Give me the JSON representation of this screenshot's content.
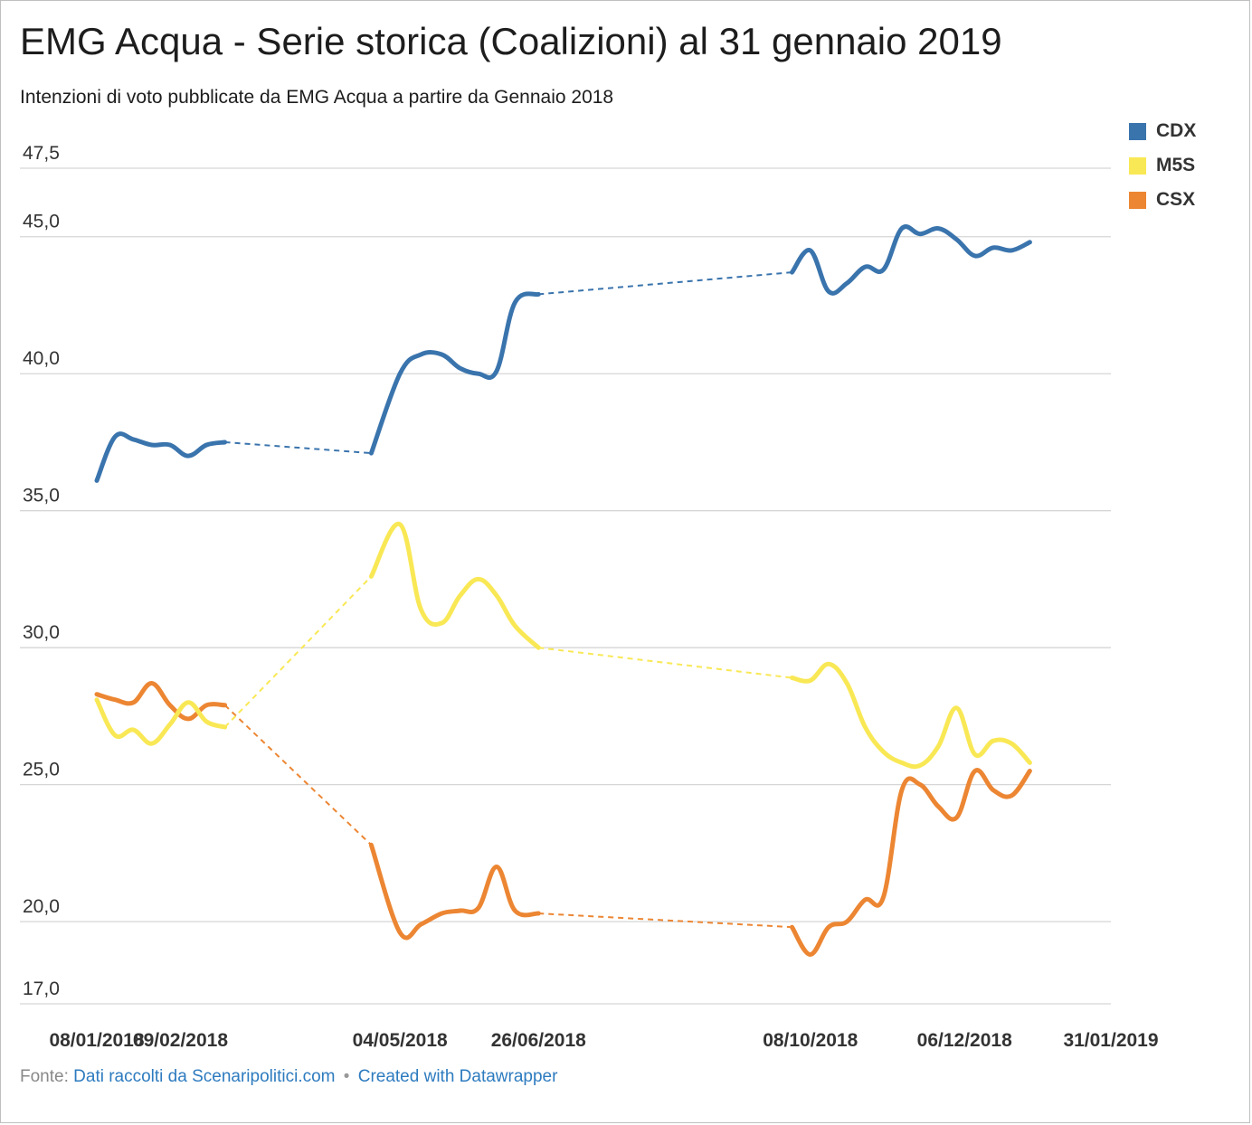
{
  "title": "EMG Acqua - Serie storica (Coalizioni) al 31 gennaio 2019",
  "subtitle": "Intenzioni di voto pubblicate da EMG Acqua a partire da Gennaio 2018",
  "footer": {
    "prefix": "Fonte:",
    "source_link": "Dati raccolti da Scenaripolitici.com",
    "separator": "•",
    "credit_link": "Created with Datawrapper"
  },
  "colors": {
    "CDX": "#3a74ad",
    "M5S": "#f9e855",
    "CSX": "#ec8633",
    "grid": "#d6d6d6",
    "tick_text": "#333333"
  },
  "chart_data": {
    "type": "line",
    "title": "EMG Acqua - Serie storica (Coalizioni) al 31 gennaio 2019",
    "ylim": [
      17,
      47.5
    ],
    "y_ticks": [
      "47,5",
      "45,0",
      "40,0",
      "35,0",
      "30,0",
      "25,0",
      "20,0",
      "17,0"
    ],
    "y_tick_values": [
      47.5,
      45,
      40,
      35,
      30,
      25,
      20,
      17
    ],
    "x_tick_labels": [
      "08/01/2018",
      "09/02/2018",
      "04/05/2018",
      "26/06/2018",
      "08/10/2018",
      "06/12/2018",
      "31/01/2019"
    ],
    "x_tick_dates": [
      "2018-01-08",
      "2018-02-09",
      "2018-05-04",
      "2018-06-26",
      "2018-10-08",
      "2018-12-06",
      "2019-01-31"
    ],
    "legend_position": "top-right",
    "dates": [
      "2018-01-08",
      "2018-01-15",
      "2018-01-22",
      "2018-01-29",
      "2018-02-05",
      "2018-02-12",
      "2018-02-19",
      "2018-02-26",
      "2018-04-23",
      "2018-05-04",
      "2018-05-12",
      "2018-05-20",
      "2018-05-27",
      "2018-06-03",
      "2018-06-10",
      "2018-06-17",
      "2018-06-26",
      "2018-07-03",
      "2018-10-01",
      "2018-10-08",
      "2018-10-15",
      "2018-10-22",
      "2018-10-29",
      "2018-11-05",
      "2018-11-12",
      "2018-11-19",
      "2018-11-26",
      "2018-12-03",
      "2018-12-10",
      "2018-12-17",
      "2018-12-24",
      "2018-12-31",
      "2019-01-07",
      "2019-01-14",
      "2019-01-21",
      "2019-01-28",
      "2019-01-31"
    ],
    "segments": [
      [
        0,
        7
      ],
      [
        8,
        17
      ],
      [
        18,
        36
      ]
    ],
    "series": [
      {
        "name": "CDX",
        "values": [
          36.1,
          37.7,
          37.6,
          37.4,
          37.4,
          37.0,
          37.4,
          37.5,
          37.1,
          40.0,
          40.7,
          40.7,
          40.2,
          40.0,
          40.1,
          42.6,
          42.9,
          null,
          43.7,
          44.5,
          43.0,
          43.3,
          43.9,
          43.8,
          45.3,
          45.1,
          45.3,
          44.9,
          44.3,
          44.6,
          44.5,
          44.8,
          null,
          null,
          null,
          null,
          null
        ]
      },
      {
        "name": "M5S",
        "values": [
          28.1,
          26.8,
          27.0,
          26.5,
          27.2,
          28.0,
          27.3,
          27.1,
          32.6,
          34.5,
          31.4,
          30.9,
          31.9,
          32.5,
          31.9,
          30.8,
          30.0,
          null,
          28.9,
          28.8,
          29.4,
          28.7,
          27.1,
          26.2,
          25.8,
          25.7,
          26.4,
          27.8,
          26.1,
          26.6,
          26.5,
          25.8,
          null,
          null,
          null,
          null,
          null
        ]
      },
      {
        "name": "CSX",
        "values": [
          28.3,
          28.1,
          28.0,
          28.7,
          27.9,
          27.4,
          27.9,
          27.9,
          22.8,
          19.6,
          19.9,
          20.3,
          20.4,
          20.5,
          22.0,
          20.4,
          20.3,
          null,
          19.8,
          18.8,
          19.8,
          20.0,
          20.8,
          20.9,
          24.8,
          25.0,
          24.2,
          23.8,
          25.5,
          24.8,
          24.6,
          25.5,
          null,
          null,
          null,
          null,
          null
        ]
      }
    ]
  }
}
